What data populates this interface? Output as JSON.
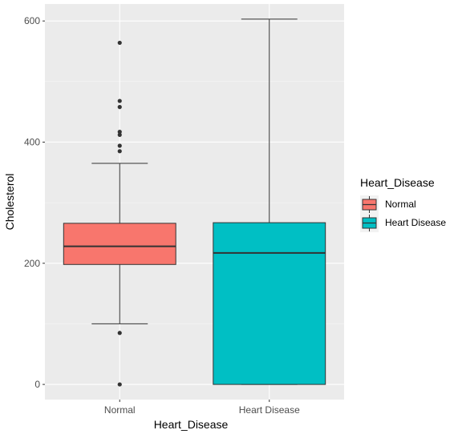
{
  "chart_data": {
    "type": "boxplot",
    "title": "",
    "xlabel": "Heart_Disease",
    "ylabel": "Cholesterol",
    "ylim": [
      -25,
      628
    ],
    "y_ticks": [
      0,
      200,
      400,
      600
    ],
    "grid": true,
    "legend": {
      "title": "Heart_Disease",
      "placement": "right",
      "entries": [
        "Normal",
        "Heart Disease"
      ]
    },
    "categories": [
      "Normal",
      "Heart Disease"
    ],
    "colors": [
      "#F8766D",
      "#00BFC4"
    ],
    "series": [
      {
        "category": "Normal",
        "q1": 198,
        "median": 228,
        "q3": 266,
        "whisker_low": 100,
        "whisker_high": 365,
        "outliers": [
          0,
          85,
          385,
          394,
          412,
          417,
          458,
          468,
          564
        ]
      },
      {
        "category": "Heart Disease",
        "q1": 0,
        "median": 217,
        "q3": 267,
        "whisker_low": 0,
        "whisker_high": 603,
        "outliers": []
      }
    ]
  }
}
